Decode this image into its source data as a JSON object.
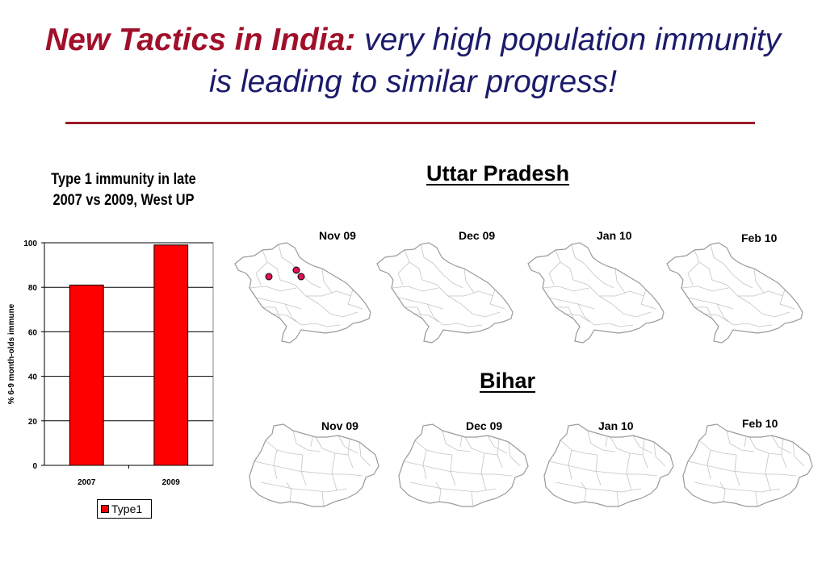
{
  "slide": {
    "title_lead": "New Tactics in India:",
    "title_rest": "very high population immunity is leading to similar progress!"
  },
  "chart_data": {
    "type": "bar",
    "title": "Type 1 immunity in late 2007 vs 2009, West UP",
    "categories": [
      "2007",
      "2009"
    ],
    "series": [
      {
        "name": "Type1",
        "values": [
          81,
          99
        ],
        "color": "#ff0000"
      }
    ],
    "ylabel": "% 6-9 month-olds immune",
    "xlabel": "",
    "ylim": [
      0,
      100
    ],
    "yticks": [
      0,
      20,
      40,
      60,
      80,
      100
    ],
    "grid": true,
    "legend": "bottom"
  },
  "uttar_pradesh": {
    "title": "Uttar Pradesh",
    "months": [
      "Nov 09",
      "Dec 09",
      "Jan 10",
      "Feb 10"
    ],
    "case_counts": [
      3,
      0,
      0,
      0
    ],
    "case_color": "#e0105a"
  },
  "bihar": {
    "title": "Bihar",
    "months": [
      "Nov 09",
      "Dec 09",
      "Jan 10",
      "Feb 10"
    ],
    "case_counts": [
      0,
      0,
      0,
      0
    ]
  }
}
